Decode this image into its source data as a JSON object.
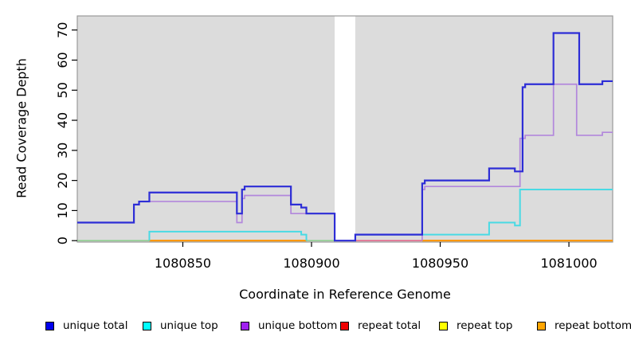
{
  "chart_data": {
    "type": "line",
    "subtype": "step-coverage-plot",
    "title": "",
    "xlabel": "Coordinate in Reference Genome",
    "ylabel": "Read Coverage Depth",
    "x_domain": [
      1080809,
      1081017
    ],
    "y_domain": [
      0,
      75
    ],
    "x_ticks": [
      1080850,
      1080900,
      1080950,
      1081000
    ],
    "y_ticks": [
      0,
      10,
      20,
      30,
      40,
      50,
      60,
      70
    ],
    "grid": false,
    "plot_bg": "#DCDCDC",
    "border_color": "#9A9A9A",
    "tick_color": "#000000",
    "gap_region": {
      "x0": 1080909,
      "x1": 1080917,
      "fill": "#FFFFFF"
    },
    "series": [
      {
        "name": "unique top",
        "color": "#49DAE4",
        "width": 2,
        "paths": [
          [
            [
              1080837,
              0
            ],
            [
              1080837,
              3
            ],
            [
              1080896,
              2
            ],
            [
              1080898,
              0
            ]
          ],
          [
            [
              1080917,
              2
            ],
            [
              1080969,
              6
            ],
            [
              1080979,
              5
            ],
            [
              1080981,
              17
            ],
            [
              1081017,
              17
            ]
          ]
        ]
      },
      {
        "name": "unique bottom",
        "color": "#B287DC",
        "width": 1.7,
        "paths": [
          [
            [
              1080809,
              6
            ],
            [
              1080831,
              12
            ],
            [
              1080833,
              13
            ],
            [
              1080871,
              6
            ],
            [
              1080873,
              14
            ],
            [
              1080874,
              15
            ],
            [
              1080892,
              9
            ],
            [
              1080909,
              0
            ],
            [
              1080917,
              0
            ]
          ],
          [
            [
              1080943,
              0
            ],
            [
              1080943,
              17
            ],
            [
              1080944,
              18
            ],
            [
              1080981,
              34
            ],
            [
              1080983,
              35
            ],
            [
              1080994,
              52
            ],
            [
              1081003,
              35
            ],
            [
              1081013,
              36
            ],
            [
              1081017,
              36
            ]
          ]
        ]
      },
      {
        "name": "unique total",
        "color": "#2D2DD6",
        "width": 2.2,
        "paths": [
          [
            [
              1080809,
              6
            ],
            [
              1080831,
              12
            ],
            [
              1080833,
              13
            ],
            [
              1080837,
              16
            ],
            [
              1080871,
              9
            ],
            [
              1080873,
              17
            ],
            [
              1080874,
              18
            ],
            [
              1080892,
              12
            ],
            [
              1080896,
              11
            ],
            [
              1080898,
              9
            ],
            [
              1080909,
              0
            ],
            [
              1080917,
              2
            ],
            [
              1080943,
              19
            ],
            [
              1080944,
              20
            ],
            [
              1080969,
              24
            ],
            [
              1080979,
              23
            ],
            [
              1080982,
              51
            ],
            [
              1080983,
              52
            ],
            [
              1080994,
              69
            ],
            [
              1081004,
              52
            ],
            [
              1081013,
              53
            ],
            [
              1081017,
              53
            ]
          ]
        ]
      }
    ],
    "baseline_segments": [
      {
        "name": "repeat-top-blend-left",
        "color": "#8FCD91",
        "width": 1.7,
        "x0": 1080809,
        "x1": 1080837,
        "y": 0
      },
      {
        "name": "repeat-bottom-left",
        "color": "#FF9400",
        "width": 2.2,
        "x0": 1080837,
        "x1": 1080898,
        "y": 0
      },
      {
        "name": "repeat-top-blend-mid",
        "color": "#8FCD91",
        "width": 1.7,
        "x0": 1080898,
        "x1": 1080909,
        "y": 0
      },
      {
        "name": "repeat-total-visible",
        "color": "#E2698C",
        "width": 1.7,
        "x0": 1080917,
        "x1": 1080943,
        "y": 0
      },
      {
        "name": "repeat-bottom-right",
        "color": "#FF9400",
        "width": 2.2,
        "x0": 1080943,
        "x1": 1081017,
        "y": 0
      }
    ],
    "legend": [
      {
        "label": "unique total",
        "color": "#0000EE"
      },
      {
        "label": "unique top",
        "color": "#00FFFF"
      },
      {
        "label": "unique bottom",
        "color": "#A020F0"
      },
      {
        "label": "repeat total",
        "color": "#EE0000"
      },
      {
        "label": "repeat top",
        "color": "#FFFF00"
      },
      {
        "label": "repeat bottom",
        "color": "#FFA500"
      }
    ],
    "legend_position": "bottom"
  }
}
